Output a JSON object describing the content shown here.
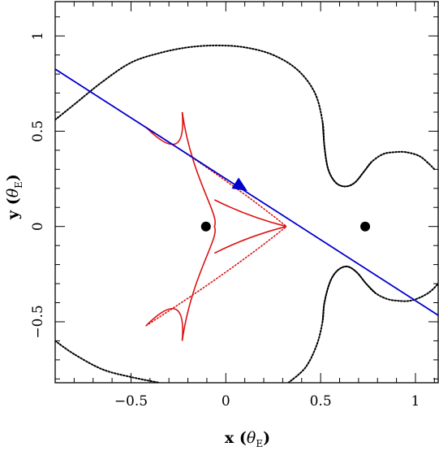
{
  "chart_data": {
    "type": "line",
    "title": "",
    "xlabel": {
      "main": "x (",
      "sym": "θ",
      "sub": "E",
      "close": ")"
    },
    "ylabel": {
      "main": "y (",
      "sym": "θ",
      "sub": "E",
      "close": ")"
    },
    "xlim": [
      -0.9,
      1.12
    ],
    "ylim": [
      -0.82,
      1.18
    ],
    "x_ticks": [
      {
        "value": -0.5,
        "label": "−0.5"
      },
      {
        "value": 0,
        "label": "0"
      },
      {
        "value": 0.5,
        "label": "0.5"
      },
      {
        "value": 1,
        "label": "1"
      }
    ],
    "y_ticks": [
      {
        "value": -0.5,
        "label": "−0.5"
      },
      {
        "value": 0,
        "label": "0"
      },
      {
        "value": 0.5,
        "label": "0.5"
      },
      {
        "value": 1,
        "label": "1"
      }
    ],
    "grid": false,
    "legend": "none",
    "colors": {
      "critical_curve": "#000000",
      "caustic": "#dd1111",
      "trajectory": "#0000cc",
      "lens": "#000000"
    },
    "lenses": [
      {
        "x": -0.105,
        "y": 0.0
      },
      {
        "x": 0.735,
        "y": 0.0
      }
    ],
    "trajectory": {
      "start": [
        -0.9,
        0.826
      ],
      "end": [
        1.12,
        -0.466
      ],
      "arrow_at": [
        0.085,
        0.205
      ]
    },
    "caustic_cusps": [
      [
        -0.42,
        0.52
      ],
      [
        -0.23,
        0.6
      ],
      [
        0.32,
        0.0
      ],
      [
        -0.23,
        -0.6
      ],
      [
        -0.42,
        -0.52
      ],
      [
        -0.06,
        0.0
      ]
    ],
    "critical_curve_outer": [
      [
        -0.9,
        0.56
      ],
      [
        -0.8,
        0.64
      ],
      [
        -0.65,
        0.76
      ],
      [
        -0.5,
        0.86
      ],
      [
        -0.35,
        0.91
      ],
      [
        -0.2,
        0.94
      ],
      [
        -0.05,
        0.95
      ],
      [
        0.1,
        0.94
      ],
      [
        0.25,
        0.9
      ],
      [
        0.38,
        0.82
      ],
      [
        0.47,
        0.7
      ],
      [
        0.51,
        0.55
      ],
      [
        0.52,
        0.42
      ],
      [
        0.54,
        0.3
      ],
      [
        0.58,
        0.23
      ],
      [
        0.63,
        0.21
      ],
      [
        0.68,
        0.23
      ],
      [
        0.73,
        0.29
      ],
      [
        0.77,
        0.34
      ],
      [
        0.83,
        0.38
      ],
      [
        0.89,
        0.39
      ],
      [
        0.95,
        0.39
      ],
      [
        1.02,
        0.37
      ],
      [
        1.07,
        0.33
      ],
      [
        1.1,
        0.3
      ]
    ],
    "critical_curve_inner": [
      [
        -0.9,
        -0.6
      ],
      [
        -0.8,
        -0.67
      ],
      [
        -0.65,
        -0.75
      ],
      [
        -0.5,
        -0.79
      ],
      [
        -0.35,
        -0.82
      ]
    ],
    "critical_curve_lower_right": [
      [
        0.33,
        -0.82
      ],
      [
        0.42,
        -0.74
      ],
      [
        0.48,
        -0.62
      ],
      [
        0.51,
        -0.5
      ],
      [
        0.52,
        -0.4
      ],
      [
        0.55,
        -0.29
      ],
      [
        0.59,
        -0.23
      ],
      [
        0.64,
        -0.21
      ],
      [
        0.69,
        -0.24
      ],
      [
        0.74,
        -0.3
      ],
      [
        0.79,
        -0.35
      ],
      [
        0.85,
        -0.38
      ],
      [
        0.91,
        -0.39
      ],
      [
        0.97,
        -0.39
      ],
      [
        1.03,
        -0.37
      ],
      [
        1.08,
        -0.34
      ],
      [
        1.12,
        -0.3
      ]
    ]
  }
}
